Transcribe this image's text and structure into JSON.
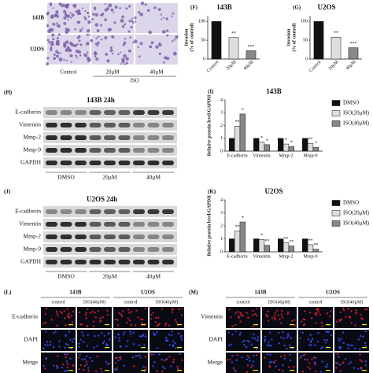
{
  "invasion_panel": {
    "row_labels": [
      "143B",
      "U2OS"
    ],
    "col_labels": [
      "Control",
      "20μM",
      "40μM"
    ],
    "treatment": "ISO"
  },
  "chart_data": [
    {
      "type": "bar",
      "panel": "(F)",
      "title": "143B",
      "ylabel_lines": [
        "Invasion",
        "(% of control)"
      ],
      "categories": [
        "Control",
        "20μM",
        "40μM"
      ],
      "values": [
        100,
        57,
        22
      ],
      "colors": [
        "#111111",
        "#dddddd",
        "#888888"
      ],
      "annotations": [
        null,
        "**",
        "***"
      ],
      "ylim": [
        0,
        115
      ],
      "yticks": [
        0,
        50,
        100
      ]
    },
    {
      "type": "bar",
      "panel": "(G)",
      "title": "U2OS",
      "ylabel_lines": [
        "Invasion",
        "(% of control)"
      ],
      "categories": [
        "Control",
        "20μM",
        "40μM"
      ],
      "values": [
        100,
        58,
        30
      ],
      "colors": [
        "#111111",
        "#dddddd",
        "#888888"
      ],
      "annotations": [
        null,
        "**",
        "***"
      ],
      "ylim": [
        0,
        115
      ],
      "yticks": [
        0,
        50,
        100
      ]
    },
    {
      "type": "bar",
      "panel": "(I)",
      "title": "143B",
      "ylabel_lines": [
        "Relative protein level/GAPDH"
      ],
      "categories": [
        "E-cadherin",
        "Vimentin",
        "Mmp-2",
        "Mmp-9"
      ],
      "series": [
        {
          "name": "DMSO",
          "color": "#111111",
          "values": [
            1,
            1,
            1,
            1
          ],
          "annotations": [
            null,
            null,
            null,
            null
          ]
        },
        {
          "name": "ISO(20μM)",
          "color": "#dddddd",
          "values": [
            1.95,
            0.7,
            0.55,
            0.6
          ],
          "annotations": [
            "**",
            "*",
            "*",
            "**"
          ]
        },
        {
          "name": "ISO(40μM)",
          "color": "#888888",
          "values": [
            2.9,
            0.5,
            0.35,
            0.3
          ],
          "annotations": [
            "*",
            "*",
            "*",
            "*"
          ]
        }
      ],
      "ylim": [
        0,
        4
      ],
      "yticks": [
        0,
        1,
        2,
        3,
        4
      ]
    },
    {
      "type": "bar",
      "panel": "(K)",
      "title": "U2OS",
      "ylabel_lines": [
        "Relative protein level/GAPDH"
      ],
      "categories": [
        "E-cadherin",
        "Vimentin",
        "Mmp-2",
        "Mmp-9"
      ],
      "series": [
        {
          "name": "DMSO",
          "color": "#111111",
          "values": [
            1,
            1,
            1,
            1
          ],
          "annotations": [
            null,
            null,
            null,
            null
          ]
        },
        {
          "name": "ISO(20μM)",
          "color": "#dddddd",
          "values": [
            1.6,
            0.95,
            0.7,
            0.55
          ],
          "annotations": [
            "**",
            "*",
            "**",
            "**"
          ]
        },
        {
          "name": "ISO(40μM)",
          "color": "#888888",
          "values": [
            2.3,
            0.5,
            0.45,
            0.2
          ],
          "annotations": [
            "*",
            "**",
            "**",
            "**"
          ]
        }
      ],
      "ylim": [
        0,
        4
      ],
      "yticks": [
        0,
        1,
        2,
        3,
        4
      ]
    }
  ],
  "blots": [
    {
      "label": "(H)",
      "title": "143B  24h",
      "rows": [
        "E-cadherin",
        "Vimentin",
        "Mmp-2",
        "Mmp-9",
        "GAPDH"
      ],
      "groups": [
        "DMSO",
        "20μM",
        "40μM"
      ]
    },
    {
      "label": "(J)",
      "title": "U2OS  24h",
      "rows": [
        "E-cadherin",
        "Vimentin",
        "Mmp-2",
        "Mmp-9",
        "GAPDH"
      ],
      "groups": [
        "DMSO",
        "20μM",
        "40μM"
      ]
    }
  ],
  "if_panels": [
    {
      "label": "(L)",
      "cells": [
        "143B",
        "U2OS"
      ],
      "conditions": [
        "control",
        "ISO(40μM)"
      ],
      "rows": [
        "E-cadherin",
        "DAPI",
        "Merge"
      ]
    },
    {
      "label": "(M)",
      "cells": [
        "143B",
        "U2OS"
      ],
      "conditions": [
        "control",
        "ISO(40μM)"
      ],
      "rows": [
        "Vimentin",
        "DAPI",
        "Merge"
      ]
    }
  ]
}
